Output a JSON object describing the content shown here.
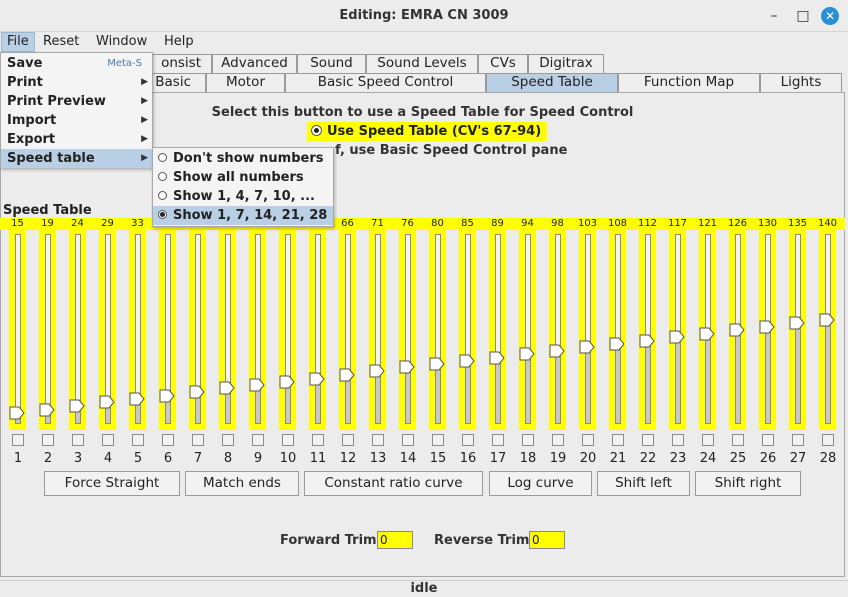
{
  "window": {
    "title": "Editing: EMRA CN 3009"
  },
  "menubar": [
    "File",
    "Reset",
    "Window",
    "Help"
  ],
  "file_menu": {
    "items": [
      {
        "label": "Save",
        "accel": "Meta-S"
      },
      {
        "label": "Print",
        "accel": ""
      },
      {
        "label": "Print Preview",
        "accel": ""
      },
      {
        "label": "Import",
        "accel": ""
      },
      {
        "label": "Export",
        "accel": ""
      },
      {
        "label": "Speed table",
        "accel": ""
      }
    ]
  },
  "speed_table_submenu": [
    {
      "label": "Don't show numbers",
      "selected": false
    },
    {
      "label": "Show all numbers",
      "selected": false
    },
    {
      "label": "Show 1, 4, 7, 10, ...",
      "selected": false
    },
    {
      "label": "Show 1, 7, 14, 21, 28",
      "selected": true
    }
  ],
  "tabs_row1": [
    "onsist",
    "Advanced",
    "Sound",
    "Sound Levels",
    "CVs",
    "Digitrax"
  ],
  "tabs_row2": [
    "Basic",
    "Motor",
    "Basic Speed Control",
    "Speed Table",
    "Function Map",
    "Lights"
  ],
  "selected_tab": "Speed Table",
  "content": {
    "instruction": "Select this button to use a Speed Table for Speed Control",
    "use_speed_table": "Use Speed Table (CV's 67-94)",
    "instruction2": "f, use Basic Speed Control pane",
    "speed_table_title": "Speed Table"
  },
  "speed_table": {
    "values": [
      15,
      19,
      24,
      29,
      33,
      38,
      43,
      48,
      52,
      57,
      61,
      66,
      71,
      76,
      80,
      85,
      89,
      94,
      98,
      103,
      108,
      112,
      117,
      121,
      126,
      130,
      135,
      140
    ],
    "visible_value_labels": [
      "15",
      "19",
      "24",
      "29",
      "33",
      "",
      "",
      "",
      "",
      "",
      "",
      "66",
      "71",
      "76",
      "80",
      "85",
      "89",
      "94",
      "98",
      "103",
      "108",
      "112",
      "117",
      "121",
      "126",
      "130",
      "135",
      "140"
    ],
    "max": 255,
    "step_labels": [
      "1",
      "2",
      "3",
      "4",
      "5",
      "6",
      "7",
      "8",
      "9",
      "10",
      "11",
      "12",
      "13",
      "14",
      "15",
      "16",
      "17",
      "18",
      "19",
      "20",
      "21",
      "22",
      "23",
      "24",
      "25",
      "26",
      "27",
      "28"
    ]
  },
  "buttons": [
    "Force Straight",
    "Match ends",
    "Constant ratio curve",
    "Log curve",
    "Shift left",
    "Shift right"
  ],
  "trim": {
    "forward_label": "Forward Trim",
    "forward_value": "0",
    "reverse_label": "Reverse Trim",
    "reverse_value": "0"
  },
  "status": "idle",
  "colors": {
    "highlight": "#ffff00",
    "selection": "#b8cfe5",
    "close_button": "#2a8fd6"
  }
}
